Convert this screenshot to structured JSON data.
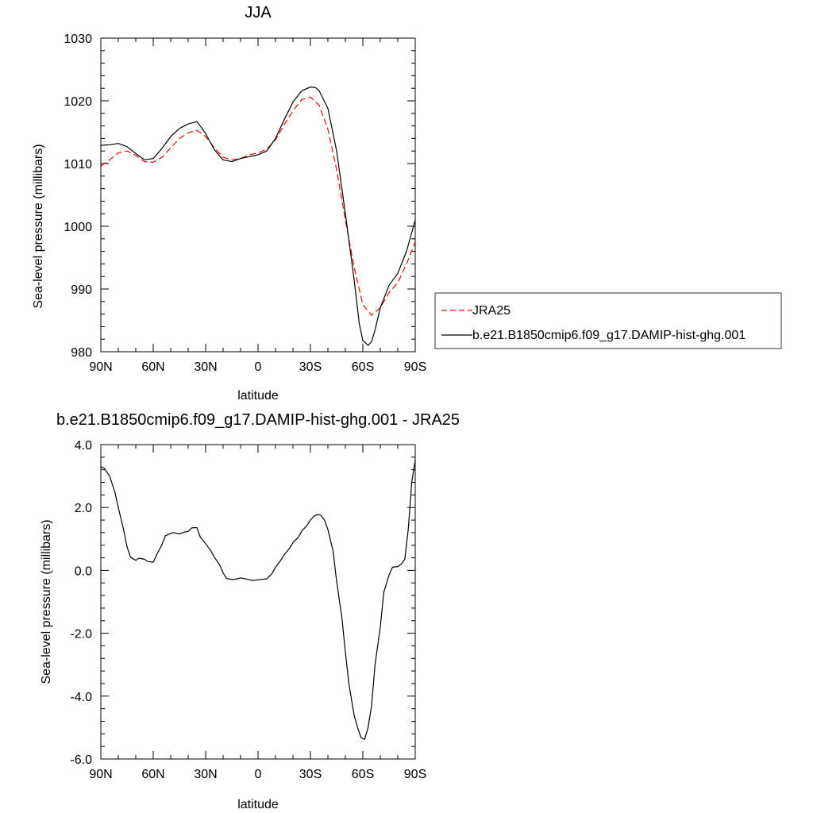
{
  "chart_data": [
    {
      "type": "line",
      "title": "JJA",
      "xlabel": "latitude",
      "ylabel": "Sea-level pressure (millibars)",
      "xlim": [
        90,
        -90
      ],
      "ylim": [
        980,
        1030
      ],
      "x_ticks": [
        90,
        60,
        30,
        0,
        -30,
        -60,
        -90
      ],
      "x_tick_labels": [
        "90N",
        "60N",
        "30N",
        "0",
        "30S",
        "60S",
        "90S"
      ],
      "y_ticks": [
        980,
        990,
        1000,
        1010,
        1020,
        1030
      ],
      "y_tick_labels": [
        "980",
        "990",
        "1000",
        "1010",
        "1020",
        "1030"
      ],
      "legend_position": "right",
      "series": [
        {
          "name": "JRA25",
          "color": "#ff0000",
          "dash": "dashed",
          "x": [
            90,
            85,
            80,
            75,
            70,
            65,
            60,
            55,
            50,
            45,
            40,
            35,
            30,
            25,
            20,
            15,
            10,
            5,
            0,
            -5,
            -10,
            -15,
            -20,
            -25,
            -30,
            -35,
            -40,
            -45,
            -50,
            -55,
            -60,
            -65,
            -70,
            -75,
            -80,
            -85,
            -90
          ],
          "y": [
            1009.6,
            1010.6,
            1011.7,
            1012.0,
            1011.3,
            1010.3,
            1010.2,
            1011.0,
            1012.5,
            1014.0,
            1014.9,
            1015.3,
            1014.3,
            1012.5,
            1011.0,
            1010.6,
            1010.8,
            1011.4,
            1011.7,
            1012.3,
            1013.8,
            1016.2,
            1018.4,
            1020.2,
            1020.6,
            1019.3,
            1015.5,
            1009.0,
            1001.0,
            993.5,
            987.5,
            985.8,
            987.0,
            989.4,
            991.0,
            994.0,
            997.5
          ]
        },
        {
          "name": "b.e21.B1850cmip6.f09_g17.DAMIP-hist-ghg.001",
          "color": "#000000",
          "dash": "solid",
          "x": [
            90,
            85,
            80,
            75,
            70,
            65,
            60,
            55,
            50,
            45,
            40,
            35,
            30,
            25,
            20,
            15,
            10,
            5,
            0,
            -5,
            -10,
            -15,
            -20,
            -25,
            -30,
            -33,
            -35,
            -40,
            -45,
            -50,
            -55,
            -58,
            -60,
            -63,
            -65,
            -67,
            -70,
            -75,
            -80,
            -85,
            -90
          ],
          "y": [
            1012.9,
            1013.0,
            1013.2,
            1012.7,
            1011.6,
            1010.6,
            1010.8,
            1012.4,
            1014.3,
            1015.6,
            1016.3,
            1016.7,
            1014.8,
            1012.2,
            1010.6,
            1010.3,
            1010.8,
            1011.1,
            1011.4,
            1012.0,
            1014.0,
            1017.0,
            1019.8,
            1021.6,
            1022.2,
            1022.1,
            1021.6,
            1018.8,
            1012.0,
            1002.0,
            991.5,
            984.4,
            981.8,
            981.0,
            981.6,
            983.5,
            987.0,
            990.6,
            992.5,
            996.0,
            1001.0
          ]
        }
      ]
    },
    {
      "type": "line",
      "title": "b.e21.B1850cmip6.f09_g17.DAMIP-hist-ghg.001 - JRA25",
      "xlabel": "latitude",
      "ylabel": "Sea-level pressure (millibars)",
      "xlim": [
        90,
        -90
      ],
      "ylim": [
        -6.0,
        4.0
      ],
      "x_ticks": [
        90,
        60,
        30,
        0,
        -30,
        -60,
        -90
      ],
      "x_tick_labels": [
        "90N",
        "60N",
        "30N",
        "0",
        "30S",
        "60S",
        "90S"
      ],
      "y_ticks": [
        -6.0,
        -4.0,
        -2.0,
        0.0,
        2.0,
        4.0
      ],
      "y_tick_labels": [
        "-6.0",
        "-4.0",
        "-2.0",
        "0.0",
        "2.0",
        "4.0"
      ],
      "series": [
        {
          "color": "#000000",
          "dash": "solid",
          "x": [
            90,
            88,
            85,
            82,
            80,
            77,
            75,
            73,
            70,
            68,
            65,
            63,
            60,
            58,
            55,
            53,
            50,
            48,
            45,
            42,
            40,
            38,
            35,
            33,
            30,
            27,
            25,
            22,
            20,
            18,
            15,
            13,
            10,
            8,
            5,
            3,
            0,
            -3,
            -5,
            -8,
            -10,
            -13,
            -15,
            -18,
            -20,
            -23,
            -25,
            -28,
            -30,
            -32,
            -34,
            -36,
            -38,
            -40,
            -43,
            -45,
            -48,
            -50,
            -52,
            -55,
            -57,
            -59,
            -61,
            -63,
            -65,
            -67,
            -70,
            -72,
            -75,
            -77,
            -80,
            -82,
            -84,
            -86,
            -88,
            -90
          ],
          "y": [
            3.3,
            3.25,
            3.0,
            2.5,
            2.0,
            1.3,
            0.75,
            0.42,
            0.32,
            0.39,
            0.35,
            0.28,
            0.26,
            0.5,
            0.82,
            1.1,
            1.18,
            1.2,
            1.16,
            1.22,
            1.24,
            1.35,
            1.36,
            1.05,
            0.85,
            0.62,
            0.42,
            0.18,
            -0.08,
            -0.26,
            -0.29,
            -0.28,
            -0.24,
            -0.26,
            -0.3,
            -0.32,
            -0.3,
            -0.28,
            -0.27,
            -0.1,
            0.1,
            0.32,
            0.5,
            0.7,
            0.88,
            1.05,
            1.25,
            1.43,
            1.6,
            1.72,
            1.78,
            1.75,
            1.6,
            1.3,
            0.6,
            -0.35,
            -1.5,
            -2.6,
            -3.6,
            -4.6,
            -5.0,
            -5.32,
            -5.38,
            -5.0,
            -4.3,
            -3.0,
            -1.8,
            -0.7,
            -0.15,
            0.1,
            0.12,
            0.2,
            0.35,
            1.3,
            2.8,
            3.5
          ]
        }
      ]
    }
  ]
}
